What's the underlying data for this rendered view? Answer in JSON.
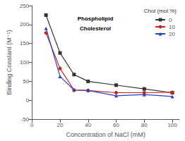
{
  "chart_data": {
    "type": "line",
    "x": [
      10,
      20,
      30,
      40,
      60,
      80,
      100
    ],
    "series": [
      {
        "name": "0",
        "color": "#333333",
        "marker": "square",
        "values": [
          225,
          125,
          68,
          50,
          40,
          30,
          20
        ]
      },
      {
        "name": "10",
        "color": "#cc2222",
        "marker": "circle",
        "values": [
          178,
          84,
          27,
          26,
          20,
          20,
          21
        ]
      },
      {
        "name": "20",
        "color": "#2244cc",
        "marker": "triangle",
        "values": [
          190,
          63,
          27,
          26,
          12,
          15,
          10
        ]
      }
    ],
    "xlabel": "Concentration of NaCl (mM)",
    "ylabel": "Binding Constant (M⁻¹)",
    "xlim": [
      0,
      105
    ],
    "xticks": [
      0,
      20,
      40,
      60,
      80,
      100
    ],
    "ylim": [
      -50,
      250
    ],
    "yticks": [
      -50,
      0,
      50,
      100,
      150,
      200,
      250
    ],
    "grid": false,
    "legend": "upper right",
    "legend_title": "Chol (mol %)",
    "annotations": [
      "Phospholipid",
      "Cholesterol"
    ]
  }
}
